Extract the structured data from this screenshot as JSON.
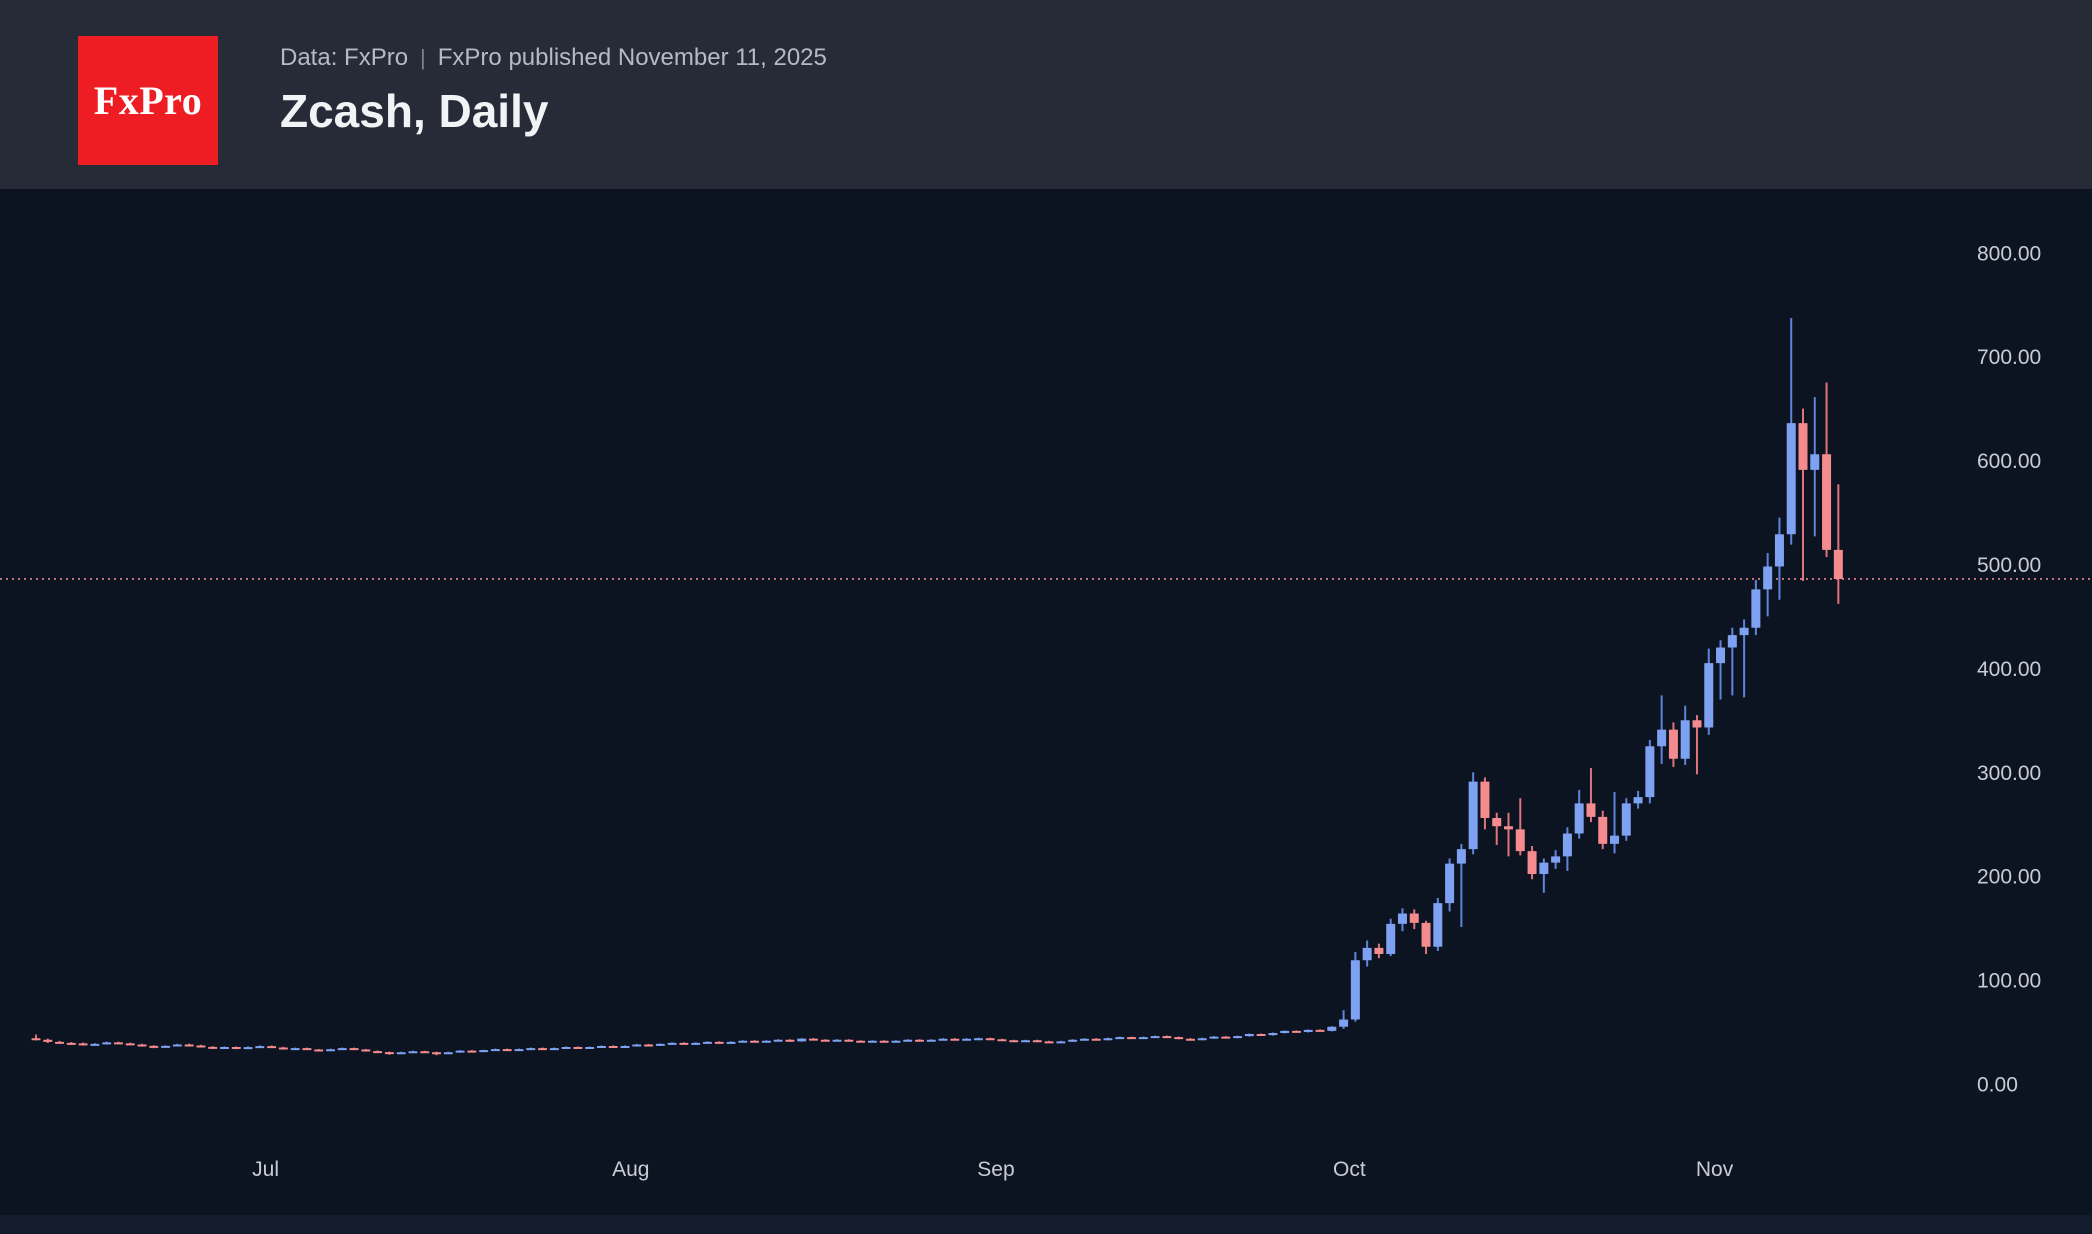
{
  "header": {
    "logo_text": "FxPro",
    "source_prefix": "Data: FxPro",
    "source_separator": "|",
    "source_suffix": "FxPro published November 11, 2025",
    "title": "Zcash, Daily"
  },
  "colors": {
    "background": "#0d1421",
    "header_background": "#262b37",
    "logo_red": "#ee1d24",
    "up_body": "#7fa1f1",
    "up_wick": "#5f84de",
    "down_body": "#f48b8e",
    "down_wick": "#e0737c",
    "last_price_line": "#ea8a94",
    "axis_text": "#c9ccd4"
  },
  "chart_data": {
    "type": "candlestick",
    "title": "Zcash, Daily",
    "source": "Data: FxPro",
    "published": "November 11, 2025",
    "ylim": [
      0,
      800
    ],
    "grid": "off",
    "legend": "none",
    "y_ticks": [
      {
        "value": 800,
        "label": "800.00"
      },
      {
        "value": 700,
        "label": "700.00"
      },
      {
        "value": 600,
        "label": "600.00"
      },
      {
        "value": 500,
        "label": "500.00"
      },
      {
        "value": 400,
        "label": "400.00"
      },
      {
        "value": 300,
        "label": "300.00"
      },
      {
        "value": 200,
        "label": "200.00"
      },
      {
        "value": 100,
        "label": "100.00"
      },
      {
        "value": 0,
        "label": "0.00"
      }
    ],
    "x_month_labels": [
      {
        "label": "Jul",
        "index": 20
      },
      {
        "label": "Aug",
        "index": 51
      },
      {
        "label": "Sep",
        "index": 82
      },
      {
        "label": "Oct",
        "index": 112
      },
      {
        "label": "Nov",
        "index": 143
      }
    ],
    "last_price": 488,
    "ohlc_order": [
      "open",
      "high",
      "low",
      "close"
    ],
    "candles": [
      [
        46,
        49.5,
        43.8,
        44.5
      ],
      [
        44.5,
        45.6,
        41.4,
        42.5
      ],
      [
        42.5,
        43.4,
        40.9,
        41.5
      ],
      [
        41.5,
        42.3,
        39.6,
        41
      ],
      [
        41,
        41.8,
        38.9,
        39.6
      ],
      [
        39.6,
        41.2,
        38.6,
        40.5
      ],
      [
        40.5,
        42.7,
        39.9,
        42
      ],
      [
        42,
        42.6,
        40.4,
        41
      ],
      [
        41,
        41.7,
        39.4,
        40
      ],
      [
        40,
        40.6,
        37.9,
        38.6
      ],
      [
        38.6,
        39.2,
        36.4,
        37.5
      ],
      [
        37.5,
        39.1,
        37,
        38.6
      ],
      [
        38.6,
        40.6,
        38.1,
        40
      ],
      [
        40,
        40.7,
        38.4,
        39
      ],
      [
        39,
        39.6,
        37,
        37.6
      ],
      [
        37.6,
        38.2,
        35.8,
        36.6
      ],
      [
        36.6,
        38.1,
        36,
        37.5
      ],
      [
        37.5,
        38,
        35.4,
        36.5
      ],
      [
        36.5,
        38.1,
        36,
        37.4
      ],
      [
        37.4,
        39,
        36.8,
        38.4
      ],
      [
        38.4,
        38.9,
        36.6,
        37.1
      ],
      [
        37.1,
        37.7,
        35.1,
        35.6
      ],
      [
        35.6,
        37,
        35,
        36.4
      ],
      [
        36.4,
        36.9,
        34.6,
        35.1
      ],
      [
        35.1,
        35.6,
        33.5,
        34.1
      ],
      [
        34.1,
        35.9,
        33.6,
        35.4
      ],
      [
        35.4,
        37,
        34.8,
        36.4
      ],
      [
        36.4,
        36.9,
        34.6,
        35.1
      ],
      [
        35.1,
        35.7,
        33.1,
        33.6
      ],
      [
        33.6,
        34.2,
        32,
        32.6
      ],
      [
        32.6,
        33.1,
        30.1,
        31.6
      ],
      [
        31.6,
        33,
        31,
        32.5
      ],
      [
        32.5,
        34,
        32,
        33.4
      ],
      [
        33.4,
        33.9,
        32,
        32.5
      ],
      [
        32.5,
        33,
        29.6,
        31.5
      ],
      [
        31.5,
        33,
        31,
        32.5
      ],
      [
        32.5,
        34.5,
        32,
        34
      ],
      [
        34,
        34.5,
        32.6,
        33.1
      ],
      [
        33.1,
        35,
        32.6,
        34.5
      ],
      [
        34.5,
        36,
        34,
        35.5
      ],
      [
        35.5,
        36,
        33.9,
        34.4
      ],
      [
        34.4,
        36,
        34,
        35.5
      ],
      [
        35.5,
        37,
        35,
        36.5
      ],
      [
        36.5,
        37,
        35,
        35.5
      ],
      [
        35.5,
        37,
        35,
        36.5
      ],
      [
        36.5,
        38,
        36,
        37.5
      ],
      [
        37.5,
        38,
        36,
        36.5
      ],
      [
        36.5,
        38,
        36,
        37.5
      ],
      [
        37.5,
        39,
        37,
        38.5
      ],
      [
        38.5,
        39,
        37,
        37.5
      ],
      [
        37.5,
        39,
        37,
        38.5
      ],
      [
        38.5,
        40.5,
        38,
        40
      ],
      [
        40,
        40.5,
        38.5,
        39
      ],
      [
        39,
        41,
        38.5,
        40.5
      ],
      [
        40.5,
        42,
        40,
        41.5
      ],
      [
        41.5,
        42,
        40,
        40.5
      ],
      [
        40.5,
        42,
        40,
        41.5
      ],
      [
        41.5,
        43,
        41,
        42.5
      ],
      [
        42.5,
        43,
        41,
        41.5
      ],
      [
        41.5,
        43,
        41,
        42.5
      ],
      [
        42.5,
        44,
        42,
        43.5
      ],
      [
        43.5,
        44,
        42,
        42.5
      ],
      [
        42.5,
        44,
        42,
        43.5
      ],
      [
        43.5,
        45,
        43,
        44.5
      ],
      [
        44.5,
        45,
        42.5,
        43
      ],
      [
        43,
        46.1,
        42.6,
        45.6
      ],
      [
        45.6,
        46.1,
        44,
        44.5
      ],
      [
        44.5,
        45,
        43,
        43.5
      ],
      [
        43.5,
        45,
        43,
        44.5
      ],
      [
        44.5,
        45,
        43,
        43.5
      ],
      [
        43.5,
        44,
        42,
        42.5
      ],
      [
        42.5,
        44,
        42,
        43.5
      ],
      [
        43.5,
        44,
        42,
        42.5
      ],
      [
        42.5,
        44,
        42,
        43.5
      ],
      [
        43.5,
        45,
        43,
        44.5
      ],
      [
        44.5,
        45,
        43,
        43.5
      ],
      [
        43.5,
        45,
        43,
        44.5
      ],
      [
        44.5,
        46,
        44,
        45.5
      ],
      [
        45.5,
        46,
        44,
        44.5
      ],
      [
        44.5,
        46,
        44,
        45.5
      ],
      [
        45.5,
        46.5,
        45,
        46
      ],
      [
        46,
        46.5,
        44.5,
        45
      ],
      [
        45,
        45.5,
        43.5,
        44
      ],
      [
        44,
        44.5,
        42.5,
        43
      ],
      [
        43,
        44.5,
        42.5,
        44
      ],
      [
        44,
        44.5,
        42.5,
        43
      ],
      [
        43,
        43.5,
        41.5,
        42
      ],
      [
        42,
        43.5,
        41.5,
        43
      ],
      [
        43,
        45,
        42.5,
        44.5
      ],
      [
        44.5,
        46,
        44,
        45.5
      ],
      [
        45.5,
        46,
        44,
        44.5
      ],
      [
        44.5,
        46.5,
        44,
        46
      ],
      [
        46,
        47.5,
        45.5,
        47
      ],
      [
        47,
        47.5,
        45.5,
        46
      ],
      [
        46,
        47.5,
        45.5,
        47
      ],
      [
        47,
        48.5,
        46.5,
        48
      ],
      [
        48,
        48.5,
        46.5,
        47
      ],
      [
        47,
        47.5,
        45,
        45.5
      ],
      [
        45.5,
        46,
        44,
        44.5
      ],
      [
        44.5,
        46.5,
        44,
        46
      ],
      [
        46,
        48,
        45.5,
        47.5
      ],
      [
        47.5,
        48,
        46,
        46.5
      ],
      [
        46.5,
        48.5,
        46,
        48
      ],
      [
        48,
        50.5,
        47.5,
        50
      ],
      [
        50,
        50.5,
        48.5,
        49
      ],
      [
        49,
        51.5,
        48.5,
        51
      ],
      [
        51,
        53.5,
        50.5,
        53
      ],
      [
        53,
        53.5,
        51.5,
        52
      ],
      [
        52,
        54.5,
        51.5,
        54
      ],
      [
        54,
        54.5,
        52.5,
        53
      ],
      [
        53,
        57.5,
        52.5,
        57
      ],
      [
        57,
        73,
        55,
        64
      ],
      [
        64,
        129,
        62,
        121
      ],
      [
        121,
        140,
        115,
        133
      ],
      [
        133,
        137,
        123,
        127
      ],
      [
        127,
        161,
        125,
        156
      ],
      [
        156,
        171,
        149,
        166
      ],
      [
        166,
        170,
        151,
        157
      ],
      [
        157,
        159,
        127,
        134
      ],
      [
        134,
        181,
        130,
        176
      ],
      [
        176,
        219,
        168,
        214
      ],
      [
        214,
        233,
        153,
        228
      ],
      [
        228,
        302,
        223,
        293
      ],
      [
        293,
        297,
        247,
        258
      ],
      [
        258,
        263,
        232,
        250
      ],
      [
        250,
        263,
        221,
        247
      ],
      [
        247,
        277,
        222,
        226
      ],
      [
        226,
        231,
        199,
        204
      ],
      [
        204,
        219,
        186,
        215
      ],
      [
        215,
        227,
        209,
        221
      ],
      [
        221,
        249,
        207,
        243
      ],
      [
        243,
        285,
        238,
        272
      ],
      [
        272,
        306,
        254,
        259
      ],
      [
        259,
        265,
        228,
        233
      ],
      [
        233,
        283,
        224,
        241
      ],
      [
        241,
        277,
        236,
        272
      ],
      [
        272,
        284,
        267,
        278
      ],
      [
        278,
        333,
        272,
        327
      ],
      [
        327,
        376,
        310,
        343
      ],
      [
        343,
        350,
        307,
        315
      ],
      [
        315,
        366,
        309,
        352
      ],
      [
        352,
        357,
        300,
        345
      ],
      [
        345,
        421,
        338,
        407
      ],
      [
        407,
        429,
        372,
        422
      ],
      [
        422,
        441,
        376,
        434
      ],
      [
        434,
        449,
        374,
        441
      ],
      [
        441,
        487,
        434,
        478
      ],
      [
        478,
        513,
        452,
        500
      ],
      [
        500,
        547,
        468,
        531
      ],
      [
        531,
        739,
        521,
        638
      ],
      [
        638,
        652,
        486,
        593
      ],
      [
        593,
        663,
        529,
        608
      ],
      [
        608,
        677,
        509,
        516
      ],
      [
        516,
        579,
        464,
        488
      ]
    ]
  }
}
